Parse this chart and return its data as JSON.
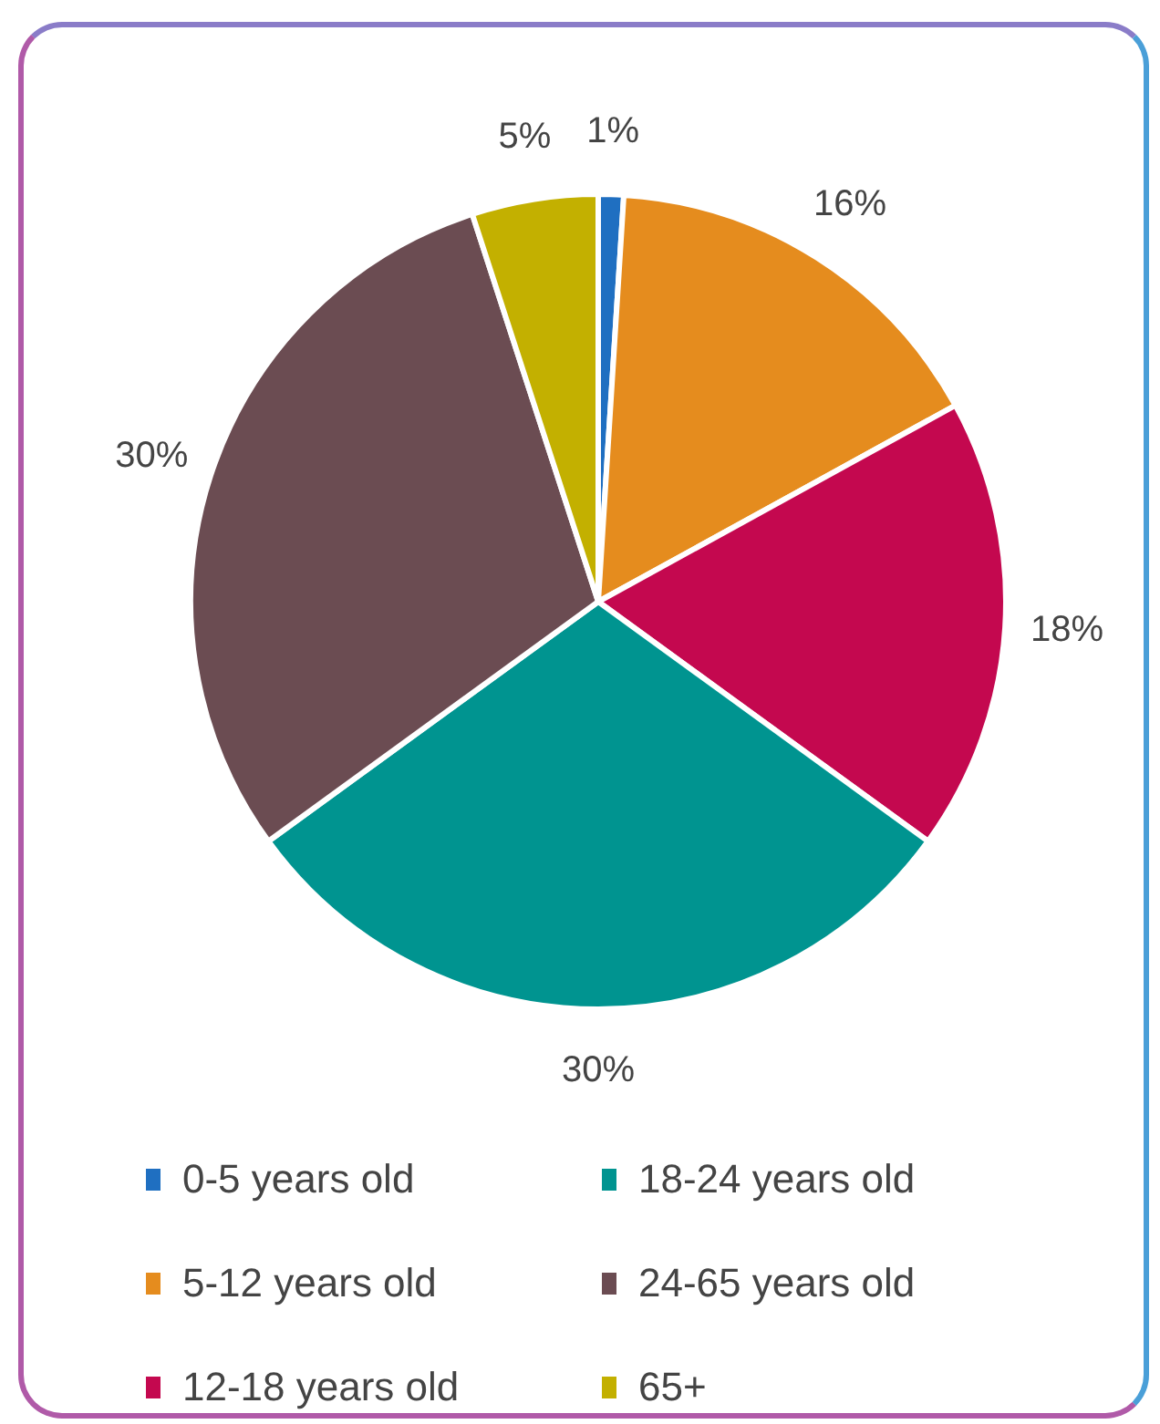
{
  "chart_data": {
    "type": "pie",
    "categories": [
      "0-5 years old",
      "5-12 years old",
      "12-18 years old",
      "18-24 years old",
      "24-65 years old",
      "65+"
    ],
    "values": [
      1,
      16,
      18,
      30,
      30,
      5
    ],
    "colors": [
      "#1f6fc1",
      "#e58c1e",
      "#c4084f",
      "#009490",
      "#6b4c52",
      "#c3b000"
    ],
    "value_labels": [
      "1%",
      "16%",
      "18%",
      "30%",
      "30%",
      "5%"
    ],
    "legend": "bottom"
  }
}
